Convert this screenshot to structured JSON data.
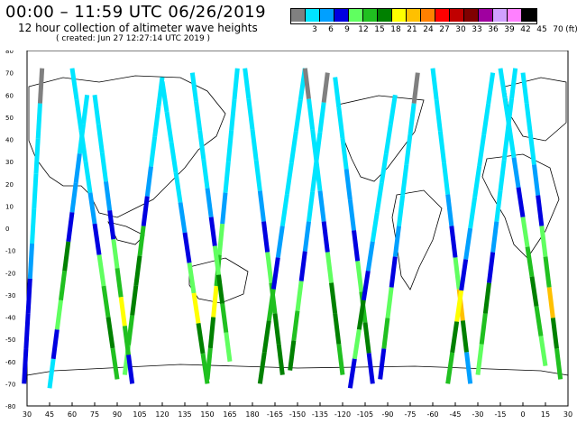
{
  "header": {
    "title": "00:00 – 11:59 UTC 06/26/2019",
    "subtitle": "12 hour collection of altimeter wave heights",
    "created": "( created: Jun 27 12:27:14 UTC 2019 )"
  },
  "legend": {
    "unit": "(ft)",
    "bins": [
      {
        "label": "",
        "color": "#808080"
      },
      {
        "label": "3",
        "color": "#00e5ff"
      },
      {
        "label": "6",
        "color": "#00a0ff"
      },
      {
        "label": "9",
        "color": "#0000e0"
      },
      {
        "label": "12",
        "color": "#60ff60"
      },
      {
        "label": "15",
        "color": "#20c020"
      },
      {
        "label": "18",
        "color": "#008000"
      },
      {
        "label": "21",
        "color": "#ffff00"
      },
      {
        "label": "24",
        "color": "#ffc000"
      },
      {
        "label": "27",
        "color": "#ff8000"
      },
      {
        "label": "30",
        "color": "#ff0000"
      },
      {
        "label": "33",
        "color": "#c00000"
      },
      {
        "label": "36",
        "color": "#800000"
      },
      {
        "label": "39",
        "color": "#a000a0"
      },
      {
        "label": "42",
        "color": "#d0a0ff"
      },
      {
        "label": "45",
        "color": "#ff80ff"
      },
      {
        "label": "70",
        "color": "#000000"
      }
    ]
  },
  "map": {
    "lon_labels": [
      "30",
      "45",
      "60",
      "75",
      "90",
      "105",
      "120",
      "135",
      "150",
      "165",
      "180",
      "-165",
      "-150",
      "-135",
      "-120",
      "-105",
      "-90",
      "-75",
      "-60",
      "-45",
      "-30",
      "-15",
      "0",
      "15",
      "30"
    ],
    "lat_labels": [
      "80",
      "70",
      "60",
      "50",
      "40",
      "30",
      "20",
      "10",
      "0",
      "-10",
      "-20",
      "-30",
      "-40",
      "-50",
      "-60",
      "-70",
      "-80"
    ],
    "lon_range": [
      30,
      390
    ],
    "lat_range": [
      -80,
      80
    ],
    "tracks": [
      {
        "lon": [
          28,
          40
        ],
        "lat": [
          -70,
          72
        ],
        "colors": [
          3,
          3,
          3,
          2,
          1,
          1,
          1,
          1,
          0
        ]
      },
      {
        "lon": [
          60,
          90
        ],
        "lat": [
          72,
          -68
        ],
        "colors": [
          1,
          1,
          1,
          1,
          2,
          3,
          4,
          5,
          6,
          5
        ]
      },
      {
        "lon": [
          95,
          120
        ],
        "lat": [
          -66,
          68
        ],
        "colors": [
          4,
          5,
          6,
          6,
          5,
          3,
          2,
          1,
          1,
          1
        ]
      },
      {
        "lon": [
          120,
          150
        ],
        "lat": [
          66,
          -70
        ],
        "colors": [
          1,
          1,
          1,
          1,
          2,
          3,
          4,
          7,
          6,
          5
        ]
      },
      {
        "lon": [
          150,
          170
        ],
        "lat": [
          -68,
          72
        ],
        "colors": [
          5,
          6,
          7,
          5,
          4,
          2,
          1,
          1,
          1,
          1
        ]
      },
      {
        "lon": [
          175,
          200
        ],
        "lat": [
          72,
          -66
        ],
        "colors": [
          1,
          1,
          1,
          1,
          2,
          3,
          4,
          5,
          6,
          6
        ]
      },
      {
        "lon": [
          205,
          230
        ],
        "lat": [
          -64,
          70
        ],
        "colors": [
          6,
          5,
          4,
          3,
          2,
          1,
          1,
          1,
          1,
          0
        ]
      },
      {
        "lon": [
          235,
          260
        ],
        "lat": [
          68,
          -70
        ],
        "colors": [
          1,
          1,
          1,
          2,
          2,
          3,
          4,
          5,
          6,
          3
        ]
      },
      {
        "lon": [
          265,
          290
        ],
        "lat": [
          -68,
          70
        ],
        "colors": [
          3,
          5,
          4,
          3,
          2,
          1,
          1,
          1,
          1,
          0
        ]
      },
      {
        "lon": [
          300,
          325
        ],
        "lat": [
          72,
          -70
        ],
        "colors": [
          1,
          1,
          1,
          1,
          2,
          3,
          4,
          8,
          6,
          2
        ]
      },
      {
        "lon": [
          330,
          355
        ],
        "lat": [
          -66,
          72
        ],
        "colors": [
          4,
          5,
          6,
          3,
          2,
          1,
          1,
          1,
          1,
          1
        ]
      },
      {
        "lon": [
          360,
          385
        ],
        "lat": [
          70,
          -68
        ],
        "colors": [
          1,
          1,
          1,
          2,
          3,
          4,
          5,
          8,
          6,
          5
        ]
      },
      {
        "lon": [
          45,
          70
        ],
        "lat": [
          -72,
          60
        ],
        "colors": [
          1,
          3,
          4,
          5,
          6,
          3,
          2,
          2,
          1,
          1
        ]
      },
      {
        "lon": [
          75,
          100
        ],
        "lat": [
          60,
          -70
        ],
        "colors": [
          1,
          1,
          1,
          2,
          3,
          4,
          5,
          7,
          5,
          3
        ]
      },
      {
        "lon": [
          140,
          165
        ],
        "lat": [
          70,
          -60
        ],
        "colors": [
          1,
          1,
          1,
          1,
          2,
          3,
          4,
          6,
          5,
          4
        ]
      },
      {
        "lon": [
          185,
          215
        ],
        "lat": [
          -70,
          72
        ],
        "colors": [
          6,
          6,
          5,
          3,
          2,
          1,
          1,
          1,
          1,
          1
        ]
      },
      {
        "lon": [
          245,
          275
        ],
        "lat": [
          -72,
          60
        ],
        "colors": [
          3,
          4,
          6,
          3,
          2,
          1,
          1,
          1,
          1,
          1
        ]
      },
      {
        "lon": [
          310,
          340
        ],
        "lat": [
          -70,
          70
        ],
        "colors": [
          5,
          6,
          7,
          3,
          2,
          1,
          1,
          1,
          1,
          1
        ]
      },
      {
        "lon": [
          345,
          375
        ],
        "lat": [
          72,
          -62
        ],
        "colors": [
          1,
          1,
          1,
          2,
          3,
          4,
          5,
          6,
          5,
          4
        ]
      },
      {
        "lon": [
          215,
          240
        ],
        "lat": [
          72,
          -66
        ],
        "colors": [
          0,
          1,
          1,
          1,
          2,
          3,
          4,
          6,
          6,
          5
        ]
      }
    ]
  }
}
